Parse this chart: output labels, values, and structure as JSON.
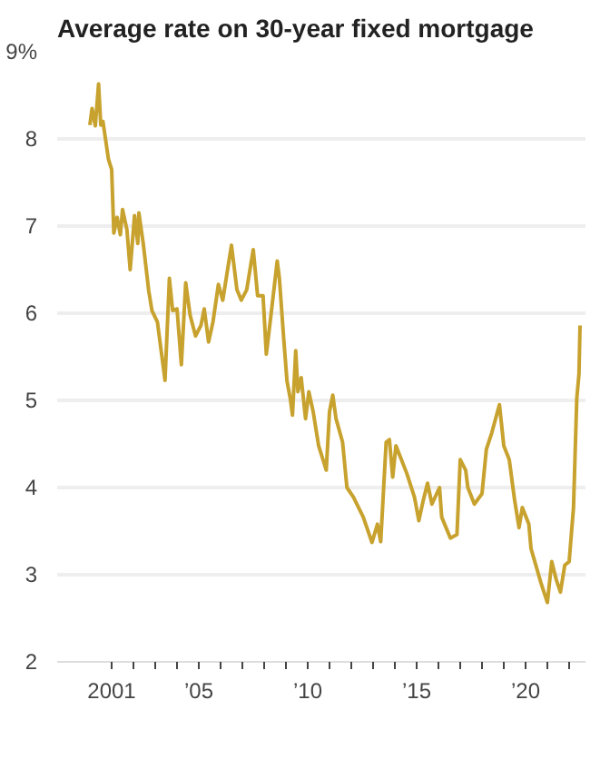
{
  "chart_data": {
    "type": "line",
    "title": "Average rate on 30-year fixed mortgage",
    "x": [
      2000.0,
      2000.1,
      2000.25,
      2000.4,
      2000.5,
      2000.6,
      2000.85,
      2001.0,
      2001.1,
      2001.25,
      2001.4,
      2001.5,
      2001.7,
      2001.85,
      2002.05,
      2002.2,
      2002.25,
      2002.45,
      2002.7,
      2002.85,
      2003.1,
      2003.45,
      2003.65,
      2003.8,
      2004.0,
      2004.2,
      2004.4,
      2004.6,
      2004.85,
      2005.1,
      2005.25,
      2005.45,
      2005.65,
      2005.9,
      2006.1,
      2006.5,
      2006.75,
      2006.95,
      2007.2,
      2007.5,
      2007.7,
      2007.95,
      2008.1,
      2008.3,
      2008.6,
      2008.7,
      2008.9,
      2009.05,
      2009.2,
      2009.3,
      2009.45,
      2009.55,
      2009.7,
      2009.9,
      2010.05,
      2010.25,
      2010.5,
      2010.85,
      2011.0,
      2011.15,
      2011.3,
      2011.6,
      2011.8,
      2012.1,
      2012.55,
      2012.95,
      2013.2,
      2013.35,
      2013.6,
      2013.75,
      2013.9,
      2014.05,
      2014.3,
      2014.55,
      2014.9,
      2015.1,
      2015.3,
      2015.5,
      2015.7,
      2016.05,
      2016.15,
      2016.55,
      2016.85,
      2017.0,
      2017.25,
      2017.35,
      2017.65,
      2018.0,
      2018.2,
      2018.45,
      2018.8,
      2019.0,
      2019.25,
      2019.5,
      2019.7,
      2019.85,
      2020.15,
      2020.25,
      2020.7,
      2021.0,
      2021.2,
      2021.4,
      2021.6,
      2021.8,
      2022.0,
      2022.2,
      2022.35,
      2022.45,
      2022.5
    ],
    "series": [
      {
        "color": "#c8a22e",
        "values": [
          8.16,
          8.35,
          8.15,
          8.63,
          8.16,
          8.2,
          7.77,
          7.65,
          6.92,
          7.1,
          6.9,
          7.19,
          6.96,
          6.5,
          7.12,
          6.8,
          7.15,
          6.8,
          6.26,
          6.03,
          5.9,
          5.23,
          6.4,
          6.03,
          6.05,
          5.41,
          6.35,
          5.98,
          5.74,
          5.86,
          6.05,
          5.67,
          5.9,
          6.33,
          6.15,
          6.78,
          6.27,
          6.15,
          6.27,
          6.73,
          6.2,
          6.2,
          5.53,
          5.95,
          6.6,
          6.4,
          5.7,
          5.22,
          5.02,
          4.83,
          5.57,
          5.1,
          5.26,
          4.79,
          5.1,
          4.87,
          4.48,
          4.2,
          4.87,
          5.06,
          4.79,
          4.52,
          4.0,
          3.89,
          3.66,
          3.37,
          3.58,
          3.38,
          4.52,
          4.55,
          4.12,
          4.48,
          4.32,
          4.16,
          3.89,
          3.62,
          3.85,
          4.05,
          3.81,
          4.0,
          3.66,
          3.42,
          3.46,
          4.32,
          4.2,
          4.0,
          3.81,
          3.93,
          4.44,
          4.63,
          4.95,
          4.48,
          4.32,
          3.85,
          3.54,
          3.77,
          3.58,
          3.3,
          2.91,
          2.68,
          3.15,
          2.95,
          2.8,
          3.11,
          3.15,
          3.77,
          5.02,
          5.3,
          5.86
        ]
      }
    ],
    "xlim": [
      1998.5,
      2022.75
    ],
    "xticks": [
      {
        "value": 2001,
        "label": "2001"
      },
      {
        "value": 2002,
        "label": null
      },
      {
        "value": 2003,
        "label": null
      },
      {
        "value": 2004,
        "label": null
      },
      {
        "value": 2005,
        "label": "’05"
      },
      {
        "value": 2006,
        "label": null
      },
      {
        "value": 2007,
        "label": null
      },
      {
        "value": 2008,
        "label": null
      },
      {
        "value": 2009,
        "label": null
      },
      {
        "value": 2010,
        "label": "’10"
      },
      {
        "value": 2011,
        "label": null
      },
      {
        "value": 2012,
        "label": null
      },
      {
        "value": 2013,
        "label": null
      },
      {
        "value": 2014,
        "label": null
      },
      {
        "value": 2015,
        "label": "’15"
      },
      {
        "value": 2016,
        "label": null
      },
      {
        "value": 2017,
        "label": null
      },
      {
        "value": 2018,
        "label": null
      },
      {
        "value": 2019,
        "label": null
      },
      {
        "value": 2020,
        "label": "’20"
      },
      {
        "value": 2021,
        "label": null
      },
      {
        "value": 2022,
        "label": null
      }
    ],
    "ylim": [
      2,
      9
    ],
    "yticks": [
      2,
      3,
      4,
      5,
      6,
      7,
      8,
      {
        "value": 9,
        "label": "9%"
      }
    ],
    "grid": "y",
    "marker": "none",
    "line_style": "solid"
  }
}
